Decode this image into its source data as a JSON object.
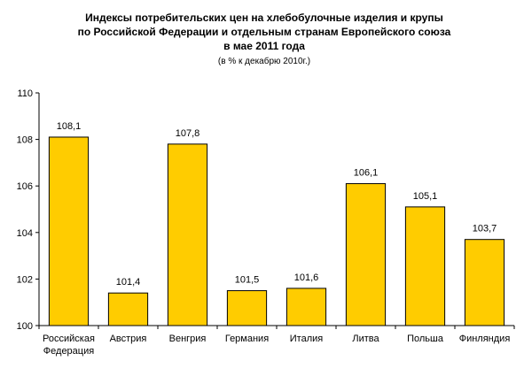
{
  "chart_data": {
    "type": "bar",
    "title_lines": [
      "Индексы потребительских цен на хлебобулочные изделия и крупы",
      "по Российской Федерации и отдельным странам Европейского союза",
      "в мае 2011 года"
    ],
    "subtitle": "(в % к декабрю 2010г.)",
    "categories": [
      [
        "Российская",
        "Федерация"
      ],
      [
        "Австрия"
      ],
      [
        "Венгрия"
      ],
      [
        "Германия"
      ],
      [
        "Италия"
      ],
      [
        "Литва"
      ],
      [
        "Польша"
      ],
      [
        "Финляндия"
      ]
    ],
    "values": [
      108.1,
      101.4,
      107.8,
      101.5,
      101.6,
      106.1,
      105.1,
      103.7
    ],
    "value_labels": [
      "108,1",
      "101,4",
      "107,8",
      "101,5",
      "101,6",
      "106,1",
      "105,1",
      "103,7"
    ],
    "ylim": [
      100,
      110
    ],
    "yticks": [
      100,
      102,
      104,
      106,
      108,
      110
    ],
    "ytick_labels": [
      "100",
      "102",
      "104",
      "106",
      "108",
      "110"
    ],
    "bar_color": "#FFCC00",
    "bar_edge_color": "#000000",
    "grid": false,
    "legend": "none"
  }
}
